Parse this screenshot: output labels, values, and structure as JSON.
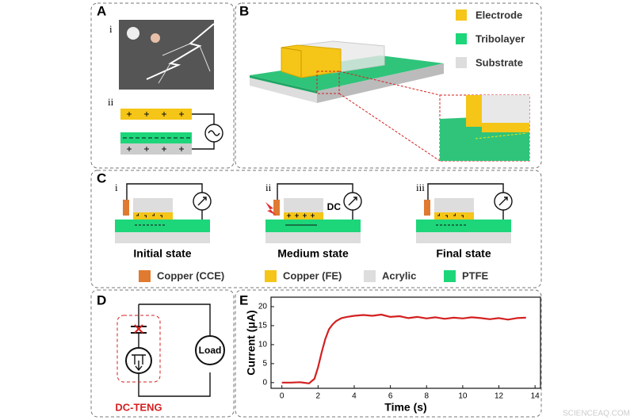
{
  "panels": {
    "a": {
      "label": "A",
      "parts": [
        "i",
        "ii"
      ]
    },
    "b": {
      "label": "B",
      "legend": [
        "Electrode",
        "Tribolayer",
        "Substrate"
      ]
    },
    "c": {
      "label": "C",
      "states": [
        {
          "roman": "i",
          "name": "Initial state"
        },
        {
          "roman": "ii",
          "name": "Medium state",
          "meter": "DC"
        },
        {
          "roman": "iii",
          "name": "Final state"
        }
      ],
      "legend": [
        "Copper (CCE)",
        "Copper (FE)",
        "Acrylic",
        "PTFE"
      ]
    },
    "d": {
      "label": "D",
      "load": "Load",
      "caption": "DC-TENG"
    }
  },
  "chart_data": {
    "type": "line",
    "label": "E",
    "x_label": "Time (s)",
    "y_label": "Current (μA)",
    "x": [
      0,
      0.5,
      1,
      1.5,
      1.8,
      2,
      2.2,
      2.4,
      2.6,
      2.8,
      3,
      3.3,
      3.6,
      4,
      4.5,
      5,
      5.5,
      6,
      6.5,
      7,
      7.5,
      8,
      8.5,
      9,
      9.5,
      10,
      10.5,
      11,
      11.5,
      12,
      12.5,
      13,
      13.5
    ],
    "series": [
      {
        "color": "#d42020",
        "values": [
          0,
          0,
          0.1,
          -0.2,
          1,
          4,
          8,
          11.5,
          14,
          15.3,
          16.2,
          17,
          17.3,
          17.6,
          17.8,
          17.6,
          17.9,
          17.3,
          17.5,
          17,
          17.3,
          16.9,
          17.2,
          16.8,
          17.1,
          16.9,
          17.2,
          17,
          16.7,
          17,
          16.6,
          17,
          17.1
        ]
      }
    ],
    "xlim": [
      -0.6,
      14.3
    ],
    "xticks": [
      0,
      2,
      4,
      6,
      8,
      10,
      12,
      14
    ],
    "ylim": [
      -1.5,
      22.5
    ],
    "yticks": [
      0,
      5,
      10,
      15,
      20
    ]
  },
  "watermark": "SCIENCEAQ.COM"
}
